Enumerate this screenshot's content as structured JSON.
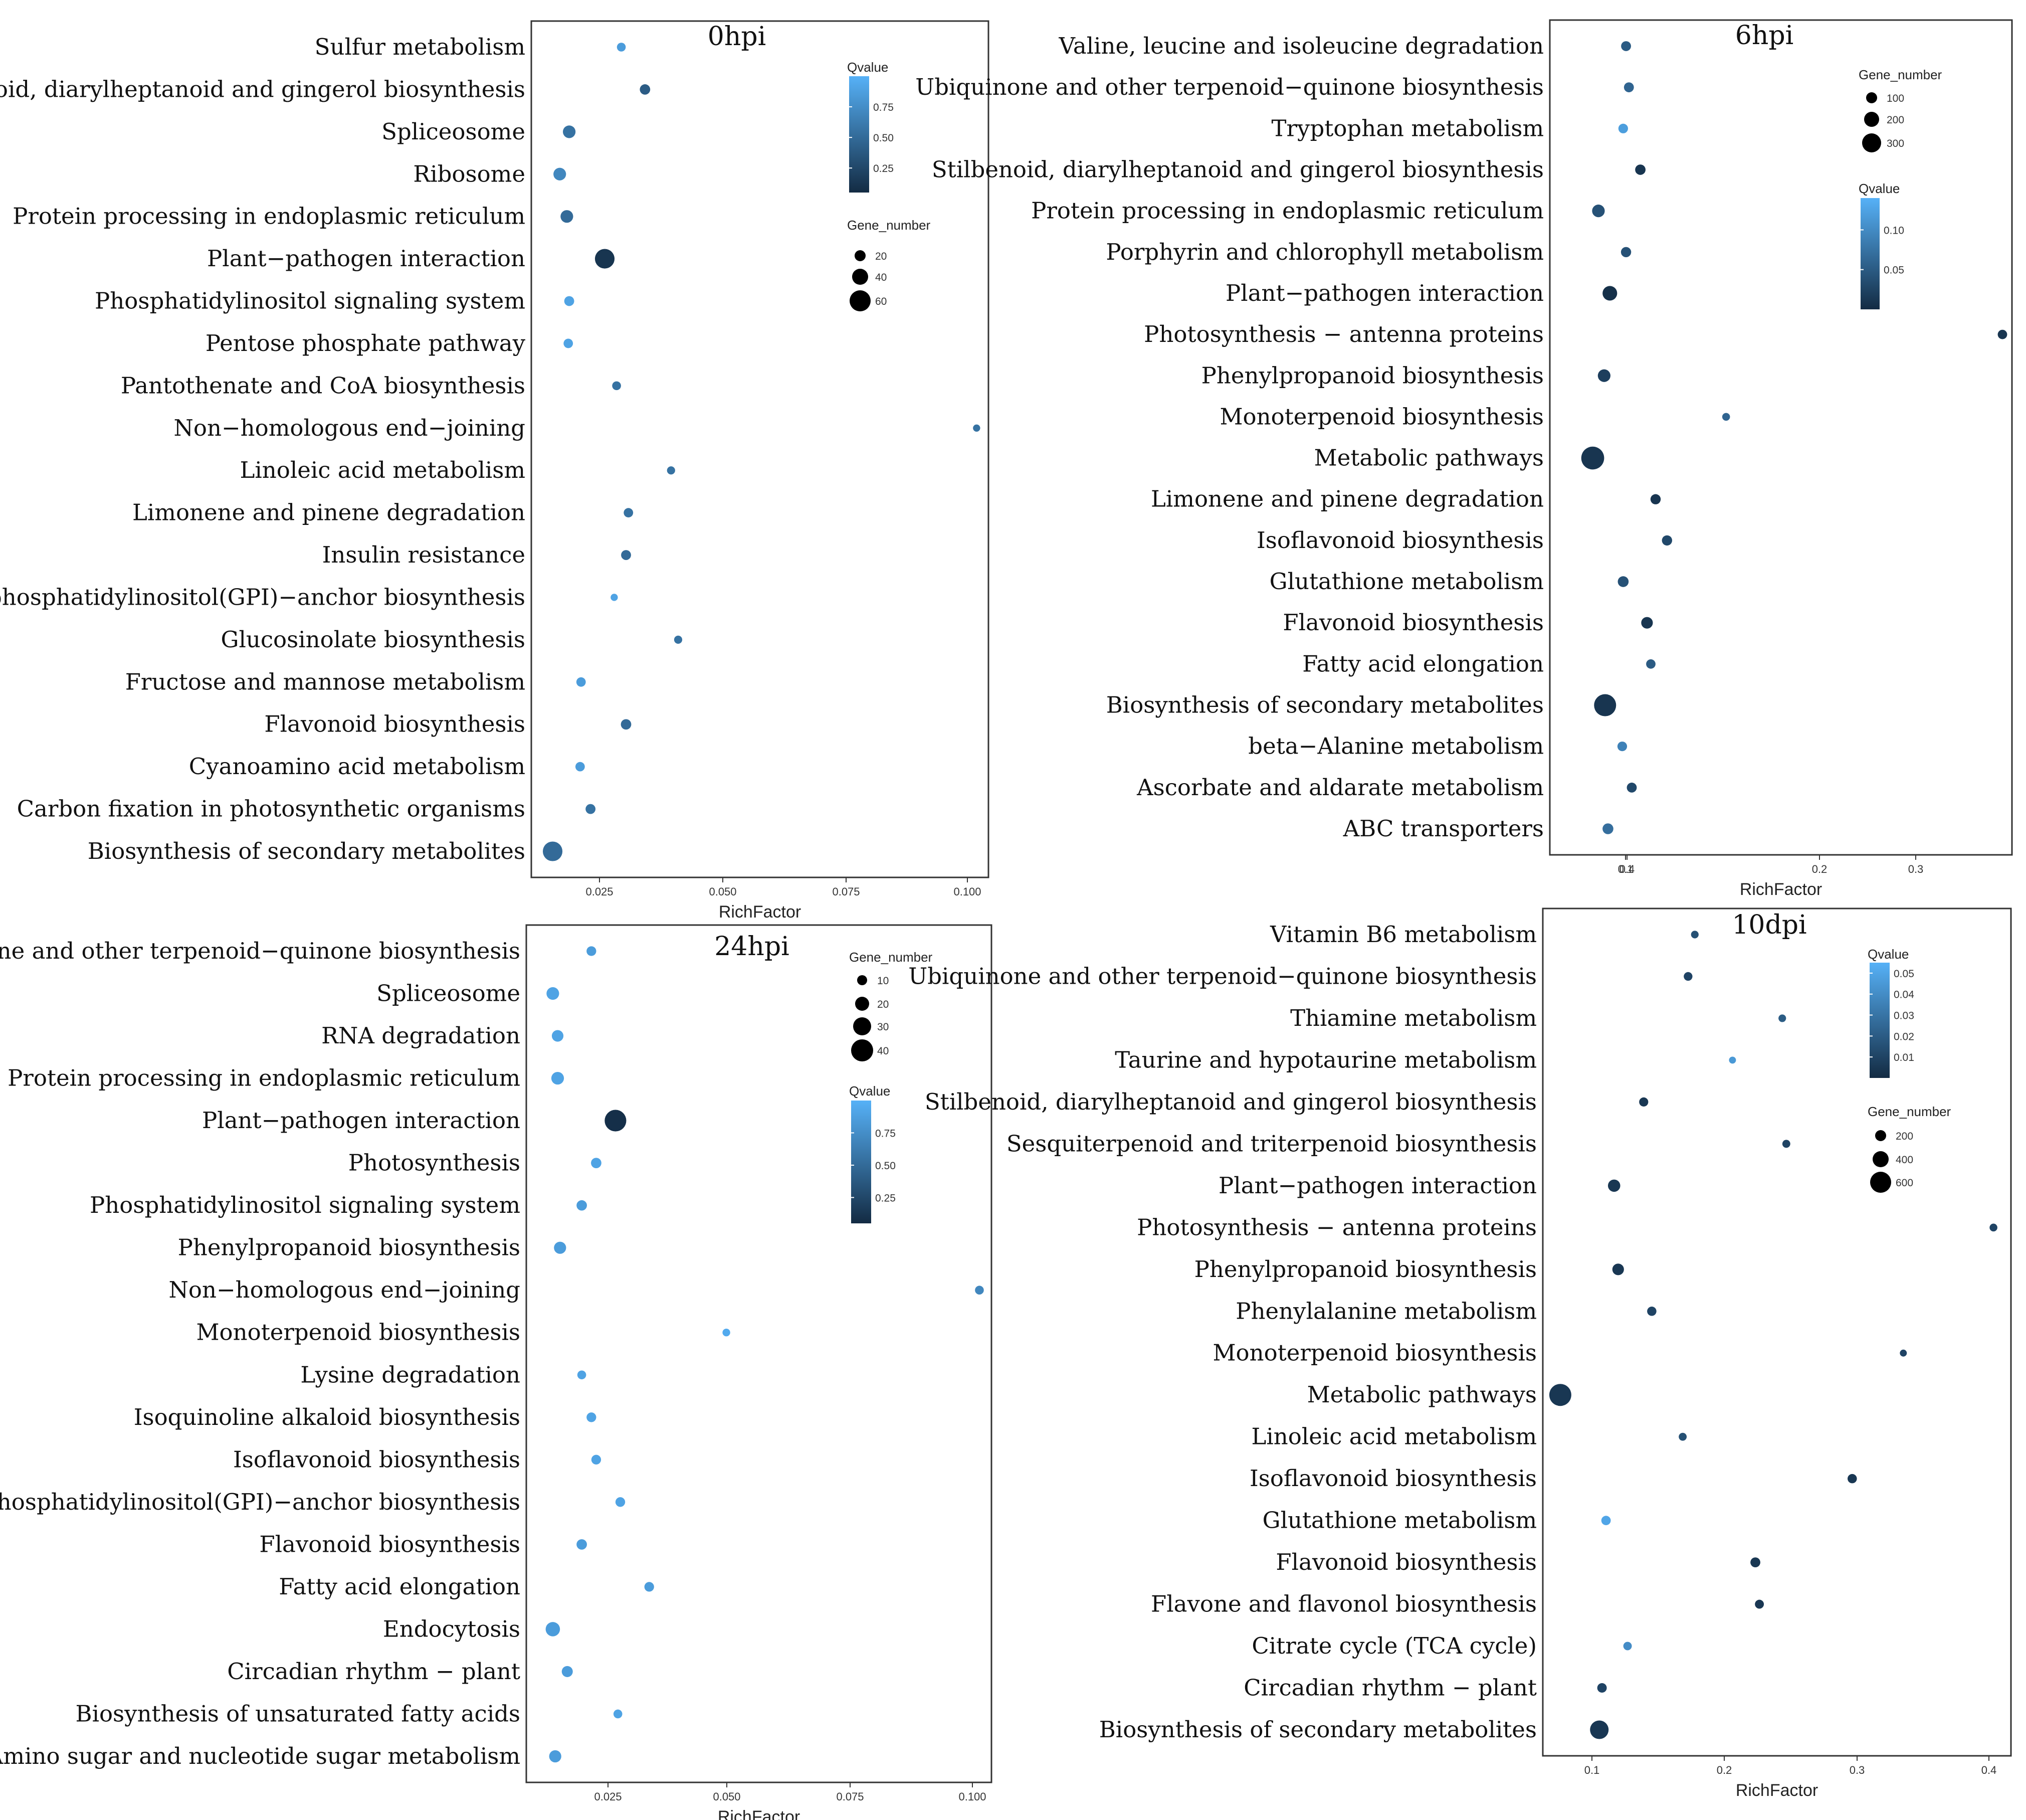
{
  "chart_data": [
    {
      "type": "scatter",
      "title": "0hpi",
      "xlabel": "RichFactor",
      "ylabel": "",
      "xlim": [
        0.006,
        0.1025
      ],
      "xticks": [
        "0.025",
        "0.050",
        "0.075",
        "0.100"
      ],
      "size_legend": {
        "title": "Gene_number",
        "values": [
          20,
          40,
          60
        ]
      },
      "color_legend": {
        "title": "Qvalue",
        "ticks": [
          "0.75",
          "0.50",
          "0.25"
        ],
        "range": [
          0.05,
          1.0
        ],
        "low_color": "#132B43",
        "high_color": "#56B1F7"
      },
      "points": [
        {
          "pathway": "Sulfur metabolism",
          "rich_factor": 0.025,
          "gene_number": 3,
          "qvalue": 0.85
        },
        {
          "pathway": "Stilbenoid, diarylheptanoid and gingerol biosynthesis",
          "rich_factor": 0.03,
          "gene_number": 6,
          "qvalue": 0.4
        },
        {
          "pathway": "Spliceosome",
          "rich_factor": 0.014,
          "gene_number": 12,
          "qvalue": 0.55
        },
        {
          "pathway": "Ribosome",
          "rich_factor": 0.012,
          "gene_number": 12,
          "qvalue": 0.7
        },
        {
          "pathway": "Protein processing in endoplasmic reticulum",
          "rich_factor": 0.0135,
          "gene_number": 12,
          "qvalue": 0.5
        },
        {
          "pathway": "Plant−pathogen interaction",
          "rich_factor": 0.0215,
          "gene_number": 44,
          "qvalue": 0.12
        },
        {
          "pathway": "Phosphatidylinositol signaling system",
          "rich_factor": 0.014,
          "gene_number": 5,
          "qvalue": 0.9
        },
        {
          "pathway": "Pentose phosphate pathway",
          "rich_factor": 0.0138,
          "gene_number": 4,
          "qvalue": 0.9
        },
        {
          "pathway": "Pantothenate and CoA biosynthesis",
          "rich_factor": 0.024,
          "gene_number": 3,
          "qvalue": 0.55
        },
        {
          "pathway": "Non−homologous end−joining",
          "rich_factor": 0.1,
          "gene_number": 1,
          "qvalue": 0.55
        },
        {
          "pathway": "Linoleic acid metabolism",
          "rich_factor": 0.0355,
          "gene_number": 2,
          "qvalue": 0.55
        },
        {
          "pathway": "Limonene and pinene degradation",
          "rich_factor": 0.0265,
          "gene_number": 4,
          "qvalue": 0.55
        },
        {
          "pathway": "Insulin resistance",
          "rich_factor": 0.026,
          "gene_number": 5,
          "qvalue": 0.5
        },
        {
          "pathway": "Glycosylphosphatidylinositol(GPI)−anchor biosynthesis",
          "rich_factor": 0.0235,
          "gene_number": 1,
          "qvalue": 0.9
        },
        {
          "pathway": "Glucosinolate biosynthesis",
          "rich_factor": 0.037,
          "gene_number": 2,
          "qvalue": 0.55
        },
        {
          "pathway": "Fructose and mannose metabolism",
          "rich_factor": 0.0165,
          "gene_number": 4,
          "qvalue": 0.85
        },
        {
          "pathway": "Flavonoid biosynthesis",
          "rich_factor": 0.026,
          "gene_number": 6,
          "qvalue": 0.5
        },
        {
          "pathway": "Cyanoamino acid metabolism",
          "rich_factor": 0.0163,
          "gene_number": 4,
          "qvalue": 0.85
        },
        {
          "pathway": "Carbon fixation in photosynthetic organisms",
          "rich_factor": 0.0185,
          "gene_number": 5,
          "qvalue": 0.55
        },
        {
          "pathway": "Biosynthesis of secondary metabolites",
          "rich_factor": 0.0105,
          "gene_number": 44,
          "qvalue": 0.5
        }
      ]
    },
    {
      "type": "scatter",
      "title": "6hpi",
      "xlabel": "RichFactor",
      "ylabel": "",
      "xlim": [
        0.005,
        0.49
      ],
      "xticks": [
        "0.1",
        "0.2",
        "0.3",
        "0.4"
      ],
      "size_legend": {
        "title": "Gene_number",
        "values": [
          100,
          200,
          300
        ]
      },
      "color_legend": {
        "title": "Qvalue",
        "ticks": [
          "0.10",
          "0.05"
        ],
        "range": [
          0.0,
          0.14
        ],
        "low_color": "#132B43",
        "high_color": "#56B1F7"
      },
      "points": [
        {
          "pathway": "Valine, leucine and isoleucine degradation",
          "rich_factor": 0.085,
          "gene_number": 25,
          "qvalue": 0.05
        },
        {
          "pathway": "Ubiquinone and other terpenoid−quinone biosynthesis",
          "rich_factor": 0.088,
          "gene_number": 25,
          "qvalue": 0.06
        },
        {
          "pathway": "Tryptophan metabolism",
          "rich_factor": 0.082,
          "gene_number": 22,
          "qvalue": 0.12
        },
        {
          "pathway": "Stilbenoid, diarylheptanoid and gingerol biosynthesis",
          "rich_factor": 0.1,
          "gene_number": 30,
          "qvalue": 0.01
        },
        {
          "pathway": "Protein processing in endoplasmic reticulum",
          "rich_factor": 0.056,
          "gene_number": 60,
          "qvalue": 0.04
        },
        {
          "pathway": "Porphyrin and chlorophyll metabolism",
          "rich_factor": 0.085,
          "gene_number": 28,
          "qvalue": 0.04
        },
        {
          "pathway": "Plant−pathogen interaction",
          "rich_factor": 0.068,
          "gene_number": 95,
          "qvalue": 0.005
        },
        {
          "pathway": "Photosynthesis − antenna proteins",
          "rich_factor": 0.48,
          "gene_number": 20,
          "qvalue": 0.01
        },
        {
          "pathway": "Phenylpropanoid biosynthesis",
          "rich_factor": 0.062,
          "gene_number": 60,
          "qvalue": 0.02
        },
        {
          "pathway": "Monoterpenoid biosynthesis",
          "rich_factor": 0.19,
          "gene_number": 8,
          "qvalue": 0.06
        },
        {
          "pathway": "Metabolic pathways",
          "rich_factor": 0.05,
          "gene_number": 330,
          "qvalue": 0.01
        },
        {
          "pathway": "Limonene and pinene degradation",
          "rich_factor": 0.116,
          "gene_number": 28,
          "qvalue": 0.01
        },
        {
          "pathway": "Isoflavonoid biosynthesis",
          "rich_factor": 0.128,
          "gene_number": 28,
          "qvalue": 0.03
        },
        {
          "pathway": "Glutathione metabolism",
          "rich_factor": 0.082,
          "gene_number": 35,
          "qvalue": 0.04
        },
        {
          "pathway": "Flavonoid biosynthesis",
          "rich_factor": 0.107,
          "gene_number": 45,
          "qvalue": 0.01
        },
        {
          "pathway": "Fatty acid elongation",
          "rich_factor": 0.111,
          "gene_number": 20,
          "qvalue": 0.05
        },
        {
          "pathway": "Biosynthesis of secondary metabolites",
          "rich_factor": 0.063,
          "gene_number": 300,
          "qvalue": 0.01
        },
        {
          "pathway": "beta−Alanine metabolism",
          "rich_factor": 0.081,
          "gene_number": 22,
          "qvalue": 0.09
        },
        {
          "pathway": "Ascorbate and aldarate metabolism",
          "rich_factor": 0.091,
          "gene_number": 25,
          "qvalue": 0.03
        },
        {
          "pathway": "ABC transporters",
          "rich_factor": 0.066,
          "gene_number": 35,
          "qvalue": 0.07
        }
      ]
    },
    {
      "type": "scatter",
      "title": "24hpi",
      "xlabel": "RichFactor",
      "ylabel": "",
      "xlim": [
        0.006,
        0.1025
      ],
      "xticks": [
        "0.025",
        "0.050",
        "0.075",
        "0.100"
      ],
      "size_legend": {
        "title": "Gene_number",
        "values": [
          10,
          20,
          30,
          40
        ]
      },
      "color_legend": {
        "title": "Qvalue",
        "ticks": [
          "0.75",
          "0.50",
          "0.25"
        ],
        "range": [
          0.05,
          1.0
        ],
        "low_color": "#132B43",
        "high_color": "#56B1F7"
      },
      "points": [
        {
          "pathway": "Ubiquinone and other terpenoid−quinone biosynthesis",
          "rich_factor": 0.0195,
          "gene_number": 3,
          "qvalue": 0.85
        },
        {
          "pathway": "Spliceosome",
          "rich_factor": 0.0115,
          "gene_number": 8,
          "qvalue": 0.9
        },
        {
          "pathway": "RNA degradation",
          "rich_factor": 0.0125,
          "gene_number": 6,
          "qvalue": 0.9
        },
        {
          "pathway": "Protein processing in endoplasmic reticulum",
          "rich_factor": 0.0125,
          "gene_number": 8,
          "qvalue": 0.9
        },
        {
          "pathway": "Plant−pathogen interaction",
          "rich_factor": 0.0245,
          "gene_number": 38,
          "qvalue": 0.08
        },
        {
          "pathway": "Photosynthesis",
          "rich_factor": 0.0205,
          "gene_number": 4,
          "qvalue": 0.9
        },
        {
          "pathway": "Phosphatidylinositol signaling system",
          "rich_factor": 0.0175,
          "gene_number": 4,
          "qvalue": 0.85
        },
        {
          "pathway": "Phenylpropanoid biosynthesis",
          "rich_factor": 0.013,
          "gene_number": 7,
          "qvalue": 0.85
        },
        {
          "pathway": "Non−homologous end−joining",
          "rich_factor": 0.1,
          "gene_number": 2,
          "qvalue": 0.7
        },
        {
          "pathway": "Monoterpenoid biosynthesis",
          "rich_factor": 0.0475,
          "gene_number": 1,
          "qvalue": 0.95
        },
        {
          "pathway": "Lysine degradation",
          "rich_factor": 0.0175,
          "gene_number": 2,
          "qvalue": 0.9
        },
        {
          "pathway": "Isoquinoline alkaloid biosynthesis",
          "rich_factor": 0.0195,
          "gene_number": 3,
          "qvalue": 0.9
        },
        {
          "pathway": "Isoflavonoid biosynthesis",
          "rich_factor": 0.0205,
          "gene_number": 3,
          "qvalue": 0.9
        },
        {
          "pathway": "Glycosylphosphatidylinositol(GPI)−anchor biosynthesis",
          "rich_factor": 0.0255,
          "gene_number": 3,
          "qvalue": 0.9
        },
        {
          "pathway": "Flavonoid biosynthesis",
          "rich_factor": 0.0175,
          "gene_number": 4,
          "qvalue": 0.85
        },
        {
          "pathway": "Fatty acid elongation",
          "rich_factor": 0.0315,
          "gene_number": 3,
          "qvalue": 0.85
        },
        {
          "pathway": "Endocytosis",
          "rich_factor": 0.0115,
          "gene_number": 12,
          "qvalue": 0.85
        },
        {
          "pathway": "Circadian rhythm − plant",
          "rich_factor": 0.0145,
          "gene_number": 5,
          "qvalue": 0.85
        },
        {
          "pathway": "Biosynthesis of unsaturated fatty acids",
          "rich_factor": 0.025,
          "gene_number": 2,
          "qvalue": 0.9
        },
        {
          "pathway": "Amino sugar and nucleotide sugar metabolism",
          "rich_factor": 0.012,
          "gene_number": 7,
          "qvalue": 0.85
        }
      ]
    },
    {
      "type": "scatter",
      "title": "10dpi",
      "xlabel": "RichFactor",
      "ylabel": "",
      "xlim": [
        0.065,
        0.413
      ],
      "xticks": [
        "0.1",
        "0.2",
        "0.3",
        "0.4"
      ],
      "size_legend": {
        "title": "Gene_number",
        "values": [
          200,
          400,
          600
        ]
      },
      "color_legend": {
        "title": "Qvalue",
        "ticks": [
          "0.05",
          "0.04",
          "0.03",
          "0.02",
          "0.01"
        ],
        "range": [
          0.0,
          0.055
        ],
        "low_color": "#132B43",
        "high_color": "#56B1F7"
      },
      "points": [
        {
          "pathway": "Vitamin B6 metabolism",
          "rich_factor": 0.178,
          "gene_number": 14,
          "qvalue": 0.015
        },
        {
          "pathway": "Ubiquinone and other terpenoid−quinone biosynthesis",
          "rich_factor": 0.173,
          "gene_number": 28,
          "qvalue": 0.01
        },
        {
          "pathway": "Thiamine metabolism",
          "rich_factor": 0.243,
          "gene_number": 14,
          "qvalue": 0.02
        },
        {
          "pathway": "Taurine and hypotaurine metabolism",
          "rich_factor": 0.206,
          "gene_number": 8,
          "qvalue": 0.045
        },
        {
          "pathway": "Stilbenoid, diarylheptanoid and gingerol biosynthesis",
          "rich_factor": 0.14,
          "gene_number": 35,
          "qvalue": 0.005
        },
        {
          "pathway": "Sesquiterpenoid and triterpenoid biosynthesis",
          "rich_factor": 0.246,
          "gene_number": 18,
          "qvalue": 0.01
        },
        {
          "pathway": "Plant−pathogen interaction",
          "rich_factor": 0.118,
          "gene_number": 110,
          "qvalue": 0.005
        },
        {
          "pathway": "Photosynthesis − antenna proteins",
          "rich_factor": 0.4,
          "gene_number": 16,
          "qvalue": 0.01
        },
        {
          "pathway": "Phenylpropanoid biosynthesis",
          "rich_factor": 0.121,
          "gene_number": 90,
          "qvalue": 0.005
        },
        {
          "pathway": "Phenylalanine metabolism",
          "rich_factor": 0.146,
          "gene_number": 38,
          "qvalue": 0.01
        },
        {
          "pathway": "Monoterpenoid biosynthesis",
          "rich_factor": 0.333,
          "gene_number": 8,
          "qvalue": 0.01
        },
        {
          "pathway": "Metabolic pathways",
          "rich_factor": 0.078,
          "gene_number": 600,
          "qvalue": 0.005
        },
        {
          "pathway": "Linoleic acid metabolism",
          "rich_factor": 0.169,
          "gene_number": 18,
          "qvalue": 0.015
        },
        {
          "pathway": "Isoflavonoid biosynthesis",
          "rich_factor": 0.295,
          "gene_number": 38,
          "qvalue": 0.005
        },
        {
          "pathway": "Glutathione metabolism",
          "rich_factor": 0.112,
          "gene_number": 40,
          "qvalue": 0.05
        },
        {
          "pathway": "Flavonoid biosynthesis",
          "rich_factor": 0.223,
          "gene_number": 50,
          "qvalue": 0.005
        },
        {
          "pathway": "Flavone and flavonol biosynthesis",
          "rich_factor": 0.226,
          "gene_number": 32,
          "qvalue": 0.005
        },
        {
          "pathway": "Citrate cycle (TCA cycle)",
          "rich_factor": 0.128,
          "gene_number": 25,
          "qvalue": 0.04
        },
        {
          "pathway": "Circadian rhythm − plant",
          "rich_factor": 0.109,
          "gene_number": 42,
          "qvalue": 0.01
        },
        {
          "pathway": "Biosynthesis of secondary metabolites",
          "rich_factor": 0.107,
          "gene_number": 380,
          "qvalue": 0.005
        }
      ]
    }
  ]
}
